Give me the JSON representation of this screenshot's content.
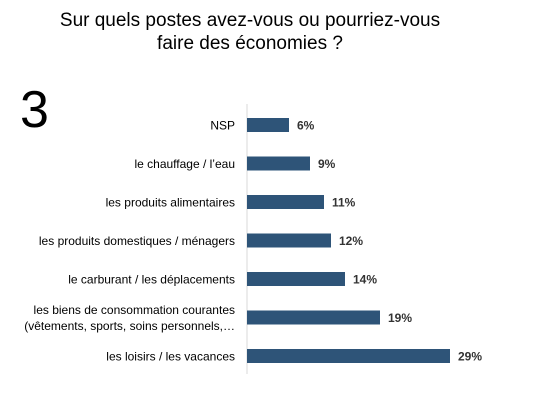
{
  "slide": {
    "number": "3"
  },
  "chart_data": {
    "type": "bar",
    "orientation": "horizontal",
    "title_lines": [
      "Sur quels postes avez-vous ou pourriez-vous",
      "faire des économies ?"
    ],
    "categories": [
      [
        "NSP"
      ],
      [
        "le chauffage  / l’eau"
      ],
      [
        "les produits alimentaires"
      ],
      [
        "les produits domestiques / ménagers"
      ],
      [
        "le carburant / les déplacements"
      ],
      [
        "les biens de consommation courantes",
        "(vêtements, sports, soins personnels,…"
      ],
      [
        "les loisirs / les vacances"
      ]
    ],
    "values": [
      6,
      9,
      11,
      12,
      14,
      19,
      29
    ],
    "value_labels": [
      "6%",
      "9%",
      "11%",
      "12%",
      "14%",
      "19%",
      "29%"
    ],
    "unit": "%",
    "xlim": [
      0,
      29
    ],
    "grid": false,
    "legend": "none",
    "colors": {
      "bar": "#2e5478",
      "axis": "#d9d9d9",
      "value_label": "#333333"
    }
  }
}
